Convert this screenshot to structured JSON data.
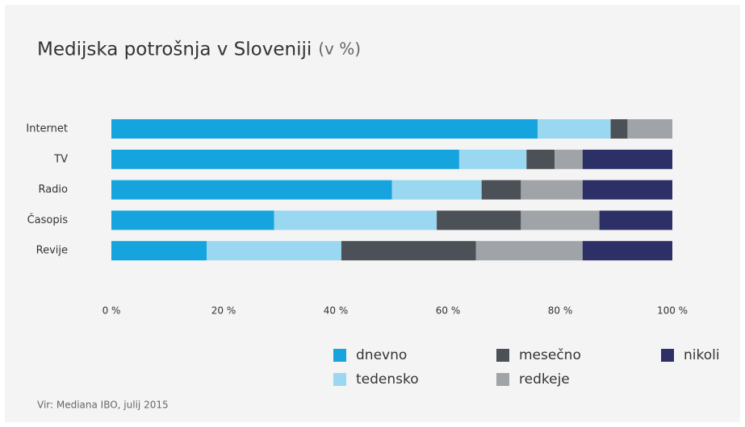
{
  "chart_data": {
    "type": "stacked_barh",
    "title": "Medijska potrošnja v Sloveniji",
    "subtitle": "(v %)",
    "source": "Vir: Mediana IBO, julij 2015",
    "categories": [
      "Internet",
      "TV",
      "Radio",
      "Časopis",
      "Revije"
    ],
    "series": [
      {
        "name": "dnevno",
        "color": "#16a4de",
        "values": [
          76,
          62,
          50,
          29,
          17
        ]
      },
      {
        "name": "tedensko",
        "color": "#9ad7f1",
        "values": [
          13,
          12,
          16,
          29,
          24
        ]
      },
      {
        "name": "mesečno",
        "color": "#4b5156",
        "values": [
          3,
          5,
          7,
          15,
          24
        ]
      },
      {
        "name": "redkeje",
        "color": "#a0a3a7",
        "values": [
          8,
          5,
          11,
          14,
          19
        ]
      },
      {
        "name": "nikoli",
        "color": "#2c3066",
        "values": [
          0,
          16,
          16,
          13,
          16
        ]
      }
    ],
    "xlim": [
      0,
      100
    ],
    "xticks": [
      {
        "value": 0,
        "label": "0 %"
      },
      {
        "value": 20,
        "label": "20 %"
      },
      {
        "value": 40,
        "label": "40 %"
      },
      {
        "value": 60,
        "label": "60 %"
      },
      {
        "value": 80,
        "label": "80 %"
      },
      {
        "value": 100,
        "label": "100 %"
      }
    ],
    "legend": "bottom-right"
  }
}
